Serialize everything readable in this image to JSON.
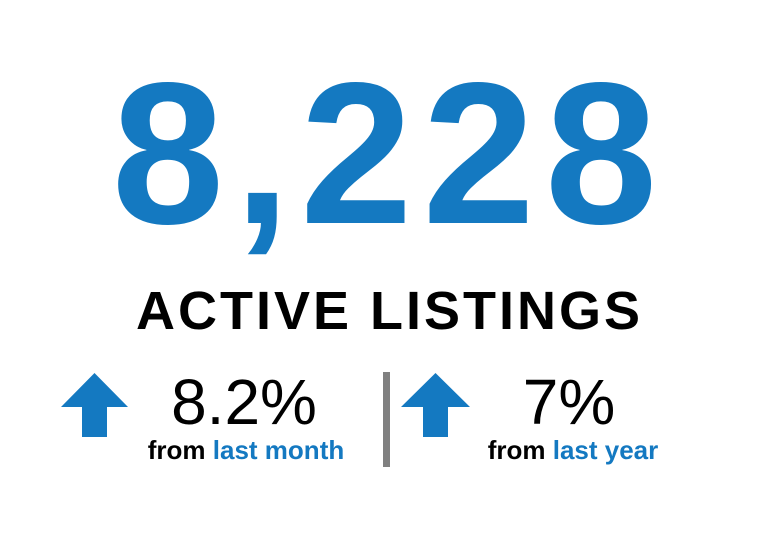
{
  "headline": {
    "value": "8,228",
    "label": "ACTIVE LISTINGS"
  },
  "stats": [
    {
      "direction": "up",
      "icon": "arrow-up-icon",
      "value": "8.2%",
      "prefix": "from",
      "period": "last month"
    },
    {
      "direction": "up",
      "icon": "arrow-up-icon",
      "value": "7%",
      "prefix": "from",
      "period": "last year"
    }
  ],
  "colors": {
    "accent": "#1479c1",
    "text": "#000000",
    "divider": "#808080"
  }
}
